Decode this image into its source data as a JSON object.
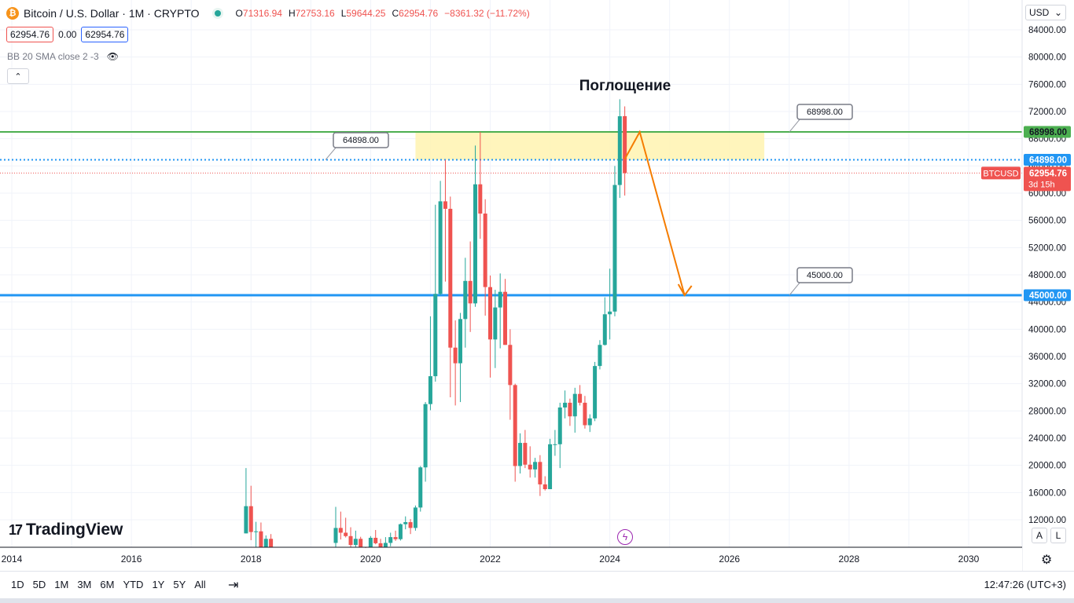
{
  "header": {
    "icon_glyph": "₿",
    "title": "Bitcoin / U.S. Dollar · 1M · CRYPTO",
    "ohlc": [
      {
        "k": "O",
        "v": "71316.94"
      },
      {
        "k": "H",
        "v": "72753.16"
      },
      {
        "k": "L",
        "v": "59644.25"
      },
      {
        "k": "C",
        "v": "62954.76"
      }
    ],
    "change": "−8361.32 (−11.72%)"
  },
  "pills": {
    "sell": "62954.76",
    "spread": "0.00",
    "buy": "62954.76"
  },
  "indicator": {
    "label": "BB 20 SMA close 2 -3",
    "eye_glyph": "👁"
  },
  "collapse_glyph": "⌃",
  "currency": {
    "value": "USD",
    "arrow": "⌄"
  },
  "logo": {
    "mark": "17",
    "text": "TradingView"
  },
  "bottom": {
    "ranges": [
      "1D",
      "5D",
      "1M",
      "3M",
      "6M",
      "YTD",
      "1Y",
      "5Y",
      "All"
    ],
    "calendar_glyph": "⇥",
    "clock": "12:47:26 (UTC+3)",
    "auto_label": "A",
    "log_label": "L",
    "gear_glyph": "⚙",
    "bolt_glyph": "ϟ"
  },
  "chart_data": {
    "type": "candlestick",
    "symbol": "BTCUSD",
    "annotation_title": "Поглощение",
    "y_ticks": [
      12000,
      16000,
      20000,
      24000,
      28000,
      32000,
      36000,
      40000,
      44000,
      48000,
      52000,
      56000,
      60000,
      64000,
      68000,
      72000,
      76000,
      80000,
      84000
    ],
    "y_tick_labels": [
      "12000.00",
      "16000.00",
      "20000.00",
      "24000.00",
      "28000.00",
      "32000.00",
      "36000.00",
      "40000.00",
      "44000.00",
      "48000.00",
      "52000.00",
      "56000.00",
      "60000.00",
      "64000.00",
      "68000.00",
      "72000.00",
      "76000.00",
      "80000.00",
      "84000.00"
    ],
    "x_tick_labels": [
      "2014",
      "2016",
      "2018",
      "2020",
      "2022",
      "2024",
      "2026",
      "2028",
      "2030"
    ],
    "x_range": [
      2014,
      2031
    ],
    "y_range": [
      10000,
      86000
    ],
    "levels": [
      {
        "price": 68998,
        "label": "68998.00",
        "color": "#4caf50",
        "style": "solid"
      },
      {
        "price": 64898,
        "label": "64898.00",
        "color": "#2196f3",
        "style": "dotted"
      },
      {
        "price": 45000,
        "label": "45000.00",
        "color": "#2196f3",
        "style": "solid"
      }
    ],
    "last_price": {
      "label": "BTCUSD",
      "value": "62954.76",
      "countdown": "3d 15h",
      "price": 62954.76,
      "color": "#ef5350"
    },
    "zone": {
      "from_date": "2020-10",
      "to_date": "2026-08",
      "low": 64898,
      "high": 68998,
      "color": "#fff3b0"
    },
    "forecast": {
      "color": "#f57c00",
      "path": [
        {
          "date": "2024-04",
          "price": 65000
        },
        {
          "date": "2024-07",
          "price": 69000
        },
        {
          "date": "2025-04",
          "price": 45000
        }
      ]
    },
    "candles": [
      {
        "date": "2017-12",
        "o": 10000,
        "h": 19600,
        "l": 10000,
        "c": 14000
      },
      {
        "date": "2018-01",
        "o": 14000,
        "h": 17000,
        "l": 9000,
        "c": 10200
      },
      {
        "date": "2018-02",
        "o": 10200,
        "h": 11700,
        "l": 6000,
        "c": 10300
      },
      {
        "date": "2018-03",
        "o": 10300,
        "h": 11600,
        "l": 6600,
        "c": 6900
      },
      {
        "date": "2018-04",
        "o": 6900,
        "h": 9700,
        "l": 6500,
        "c": 9200
      },
      {
        "date": "2018-05",
        "o": 9200,
        "h": 9900,
        "l": 7000,
        "c": 7500
      },
      {
        "date": "2019-06",
        "o": 8600,
        "h": 13900,
        "l": 7500,
        "c": 10800
      },
      {
        "date": "2019-07",
        "o": 10800,
        "h": 13200,
        "l": 9100,
        "c": 10100
      },
      {
        "date": "2019-08",
        "o": 10100,
        "h": 12300,
        "l": 9400,
        "c": 9600
      },
      {
        "date": "2019-09",
        "o": 9600,
        "h": 10900,
        "l": 7700,
        "c": 8300
      },
      {
        "date": "2019-10",
        "o": 8300,
        "h": 10400,
        "l": 7300,
        "c": 9200
      },
      {
        "date": "2019-11",
        "o": 9200,
        "h": 9500,
        "l": 6500,
        "c": 7550
      },
      {
        "date": "2019-12",
        "o": 7550,
        "h": 7750,
        "l": 6400,
        "c": 7200
      },
      {
        "date": "2020-01",
        "o": 7200,
        "h": 9600,
        "l": 6900,
        "c": 9350
      },
      {
        "date": "2020-02",
        "o": 9350,
        "h": 10500,
        "l": 8400,
        "c": 8550
      },
      {
        "date": "2020-03",
        "o": 8550,
        "h": 9200,
        "l": 3800,
        "c": 6400
      },
      {
        "date": "2020-04",
        "o": 6400,
        "h": 9450,
        "l": 6150,
        "c": 8600
      },
      {
        "date": "2020-05",
        "o": 8600,
        "h": 10100,
        "l": 8100,
        "c": 9450
      },
      {
        "date": "2020-06",
        "o": 9450,
        "h": 10400,
        "l": 8900,
        "c": 9150
      },
      {
        "date": "2020-07",
        "o": 9150,
        "h": 11450,
        "l": 8950,
        "c": 11350
      },
      {
        "date": "2020-08",
        "o": 11350,
        "h": 12500,
        "l": 10600,
        "c": 11650
      },
      {
        "date": "2020-09",
        "o": 11650,
        "h": 12100,
        "l": 9900,
        "c": 10800
      },
      {
        "date": "2020-10",
        "o": 10800,
        "h": 14100,
        "l": 10400,
        "c": 13800
      },
      {
        "date": "2020-11",
        "o": 13800,
        "h": 19900,
        "l": 13200,
        "c": 19700
      },
      {
        "date": "2020-12",
        "o": 19700,
        "h": 29300,
        "l": 17600,
        "c": 29000
      },
      {
        "date": "2021-01",
        "o": 29000,
        "h": 41900,
        "l": 28100,
        "c": 33100
      },
      {
        "date": "2021-02",
        "o": 33100,
        "h": 58300,
        "l": 32300,
        "c": 45200
      },
      {
        "date": "2021-03",
        "o": 45200,
        "h": 61800,
        "l": 45000,
        "c": 58800
      },
      {
        "date": "2021-04",
        "o": 58800,
        "h": 64898,
        "l": 47000,
        "c": 57700
      },
      {
        "date": "2021-05",
        "o": 57700,
        "h": 59500,
        "l": 30000,
        "c": 37300
      },
      {
        "date": "2021-06",
        "o": 37300,
        "h": 41300,
        "l": 28800,
        "c": 35000
      },
      {
        "date": "2021-07",
        "o": 35000,
        "h": 42400,
        "l": 29300,
        "c": 41500
      },
      {
        "date": "2021-08",
        "o": 41500,
        "h": 50500,
        "l": 37300,
        "c": 47100
      },
      {
        "date": "2021-09",
        "o": 47100,
        "h": 52900,
        "l": 39600,
        "c": 43800
      },
      {
        "date": "2021-10",
        "o": 43800,
        "h": 67000,
        "l": 43300,
        "c": 61300
      },
      {
        "date": "2021-11",
        "o": 61300,
        "h": 68998,
        "l": 53300,
        "c": 57000
      },
      {
        "date": "2021-12",
        "o": 57000,
        "h": 59100,
        "l": 42000,
        "c": 46200
      },
      {
        "date": "2022-01",
        "o": 46200,
        "h": 47900,
        "l": 32900,
        "c": 38500
      },
      {
        "date": "2022-02",
        "o": 38500,
        "h": 45800,
        "l": 34300,
        "c": 43200
      },
      {
        "date": "2022-03",
        "o": 43200,
        "h": 48200,
        "l": 37200,
        "c": 45500
      },
      {
        "date": "2022-04",
        "o": 45500,
        "h": 47400,
        "l": 37700,
        "c": 37700
      },
      {
        "date": "2022-05",
        "o": 37700,
        "h": 40000,
        "l": 26700,
        "c": 31800
      },
      {
        "date": "2022-06",
        "o": 31800,
        "h": 32000,
        "l": 17600,
        "c": 19900
      },
      {
        "date": "2022-07",
        "o": 19900,
        "h": 24700,
        "l": 18800,
        "c": 23300
      },
      {
        "date": "2022-08",
        "o": 23300,
        "h": 25200,
        "l": 19600,
        "c": 20100
      },
      {
        "date": "2022-09",
        "o": 20100,
        "h": 22800,
        "l": 18200,
        "c": 19400
      },
      {
        "date": "2022-10",
        "o": 19400,
        "h": 21100,
        "l": 18200,
        "c": 20500
      },
      {
        "date": "2022-11",
        "o": 20500,
        "h": 21500,
        "l": 15500,
        "c": 17200
      },
      {
        "date": "2022-12",
        "o": 17200,
        "h": 18400,
        "l": 16300,
        "c": 16500
      },
      {
        "date": "2023-01",
        "o": 16500,
        "h": 23900,
        "l": 16500,
        "c": 23100
      },
      {
        "date": "2023-02",
        "o": 23100,
        "h": 25200,
        "l": 21400,
        "c": 23100
      },
      {
        "date": "2023-03",
        "o": 23100,
        "h": 29200,
        "l": 19600,
        "c": 28500
      },
      {
        "date": "2023-04",
        "o": 28500,
        "h": 31000,
        "l": 26900,
        "c": 29200
      },
      {
        "date": "2023-05",
        "o": 29200,
        "h": 29800,
        "l": 25800,
        "c": 27200
      },
      {
        "date": "2023-06",
        "o": 27200,
        "h": 31400,
        "l": 24800,
        "c": 30500
      },
      {
        "date": "2023-07",
        "o": 30500,
        "h": 31800,
        "l": 28800,
        "c": 29200
      },
      {
        "date": "2023-08",
        "o": 29200,
        "h": 30200,
        "l": 25400,
        "c": 25900
      },
      {
        "date": "2023-09",
        "o": 25900,
        "h": 27500,
        "l": 24900,
        "c": 26900
      },
      {
        "date": "2023-10",
        "o": 26900,
        "h": 35200,
        "l": 26500,
        "c": 34600
      },
      {
        "date": "2023-11",
        "o": 34600,
        "h": 38400,
        "l": 34100,
        "c": 37700
      },
      {
        "date": "2023-12",
        "o": 37700,
        "h": 44700,
        "l": 37600,
        "c": 42200
      },
      {
        "date": "2024-01",
        "o": 42200,
        "h": 48900,
        "l": 38500,
        "c": 42600
      },
      {
        "date": "2024-02",
        "o": 42600,
        "h": 64000,
        "l": 41900,
        "c": 61200
      },
      {
        "date": "2024-03",
        "o": 61200,
        "h": 73800,
        "l": 59300,
        "c": 71300
      },
      {
        "date": "2024-04",
        "o": 71316.94,
        "h": 72753.16,
        "l": 59644.25,
        "c": 62954.76
      }
    ],
    "colors": {
      "up": "#26a69a",
      "down": "#ef5350",
      "grid": "#f0f3fa",
      "axis_text": "#131722"
    }
  }
}
